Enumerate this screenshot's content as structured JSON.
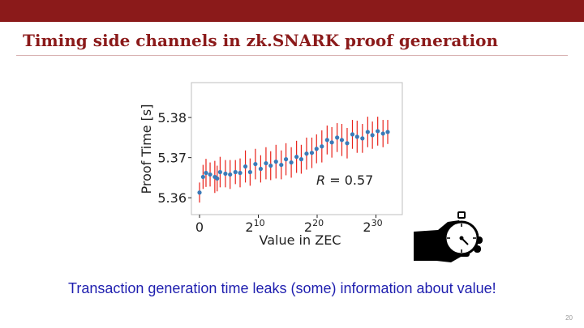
{
  "slide": {
    "title": "Timing side channels in zk.SNARK proof generation",
    "caption": "Transaction generation time leaks (some) information about value!",
    "page_number": "20"
  },
  "icons": {
    "illustration": "hand-holding-stopwatch-icon"
  },
  "colors": {
    "top_bar": "#8b1a1a",
    "title": "#8b1a1a",
    "caption": "#1f1faf",
    "points": "#3a7ab8",
    "error_bars": "#e8221a"
  },
  "chart_data": {
    "type": "scatter",
    "xlabel": "Value in ZEC",
    "ylabel": "Proof Time [s]",
    "x_scale": "log2",
    "ylim": [
      5.3558,
      5.3887
    ],
    "y_ticks": [
      5.36,
      5.37,
      5.38
    ],
    "x_ticks": [
      {
        "base": "0",
        "exp": ""
      },
      {
        "base": "2",
        "exp": "10"
      },
      {
        "base": "2",
        "exp": "20"
      },
      {
        "base": "2",
        "exp": "30"
      }
    ],
    "annotation": {
      "label": "R = 0.57"
    },
    "grid": false,
    "legend": "none",
    "series": [
      {
        "error_bars": true,
        "points": [
          {
            "x": 0.0,
            "y": 5.3613,
            "err": 0.0025
          },
          {
            "x": 0.6,
            "y": 5.3652,
            "err": 0.003
          },
          {
            "x": 1.1,
            "y": 5.3662,
            "err": 0.0035
          },
          {
            "x": 1.8,
            "y": 5.3658,
            "err": 0.003
          },
          {
            "x": 2.6,
            "y": 5.3652,
            "err": 0.004
          },
          {
            "x": 3.0,
            "y": 5.3648,
            "err": 0.0032
          },
          {
            "x": 3.5,
            "y": 5.3664,
            "err": 0.0038
          },
          {
            "x": 4.4,
            "y": 5.366,
            "err": 0.0034
          },
          {
            "x": 5.2,
            "y": 5.3658,
            "err": 0.0036
          },
          {
            "x": 6.1,
            "y": 5.3664,
            "err": 0.003
          },
          {
            "x": 6.9,
            "y": 5.3662,
            "err": 0.0036
          },
          {
            "x": 7.8,
            "y": 5.3678,
            "err": 0.004
          },
          {
            "x": 8.6,
            "y": 5.3664,
            "err": 0.0034
          },
          {
            "x": 9.5,
            "y": 5.3684,
            "err": 0.0038
          },
          {
            "x": 10.4,
            "y": 5.3672,
            "err": 0.0034
          },
          {
            "x": 11.3,
            "y": 5.3686,
            "err": 0.004
          },
          {
            "x": 12.1,
            "y": 5.368,
            "err": 0.0036
          },
          {
            "x": 13.0,
            "y": 5.369,
            "err": 0.0042
          },
          {
            "x": 13.9,
            "y": 5.3682,
            "err": 0.0036
          },
          {
            "x": 14.7,
            "y": 5.3696,
            "err": 0.004
          },
          {
            "x": 15.6,
            "y": 5.3688,
            "err": 0.0038
          },
          {
            "x": 16.5,
            "y": 5.3702,
            "err": 0.004
          },
          {
            "x": 17.3,
            "y": 5.3696,
            "err": 0.0036
          },
          {
            "x": 18.2,
            "y": 5.371,
            "err": 0.004
          },
          {
            "x": 19.1,
            "y": 5.3712,
            "err": 0.0038
          },
          {
            "x": 19.9,
            "y": 5.3722,
            "err": 0.0036
          },
          {
            "x": 20.8,
            "y": 5.3728,
            "err": 0.004
          },
          {
            "x": 21.7,
            "y": 5.3744,
            "err": 0.0036
          },
          {
            "x": 22.5,
            "y": 5.3738,
            "err": 0.0038
          },
          {
            "x": 23.4,
            "y": 5.375,
            "err": 0.0036
          },
          {
            "x": 24.2,
            "y": 5.3744,
            "err": 0.004
          },
          {
            "x": 25.1,
            "y": 5.3736,
            "err": 0.0038
          },
          {
            "x": 26.0,
            "y": 5.3758,
            "err": 0.0036
          },
          {
            "x": 26.8,
            "y": 5.3752,
            "err": 0.004
          },
          {
            "x": 27.7,
            "y": 5.3748,
            "err": 0.0036
          },
          {
            "x": 28.6,
            "y": 5.3764,
            "err": 0.0038
          },
          {
            "x": 29.4,
            "y": 5.3756,
            "err": 0.0034
          },
          {
            "x": 30.3,
            "y": 5.3766,
            "err": 0.0036
          },
          {
            "x": 31.2,
            "y": 5.376,
            "err": 0.0034
          },
          {
            "x": 32.0,
            "y": 5.3764,
            "err": 0.003
          }
        ]
      }
    ]
  }
}
